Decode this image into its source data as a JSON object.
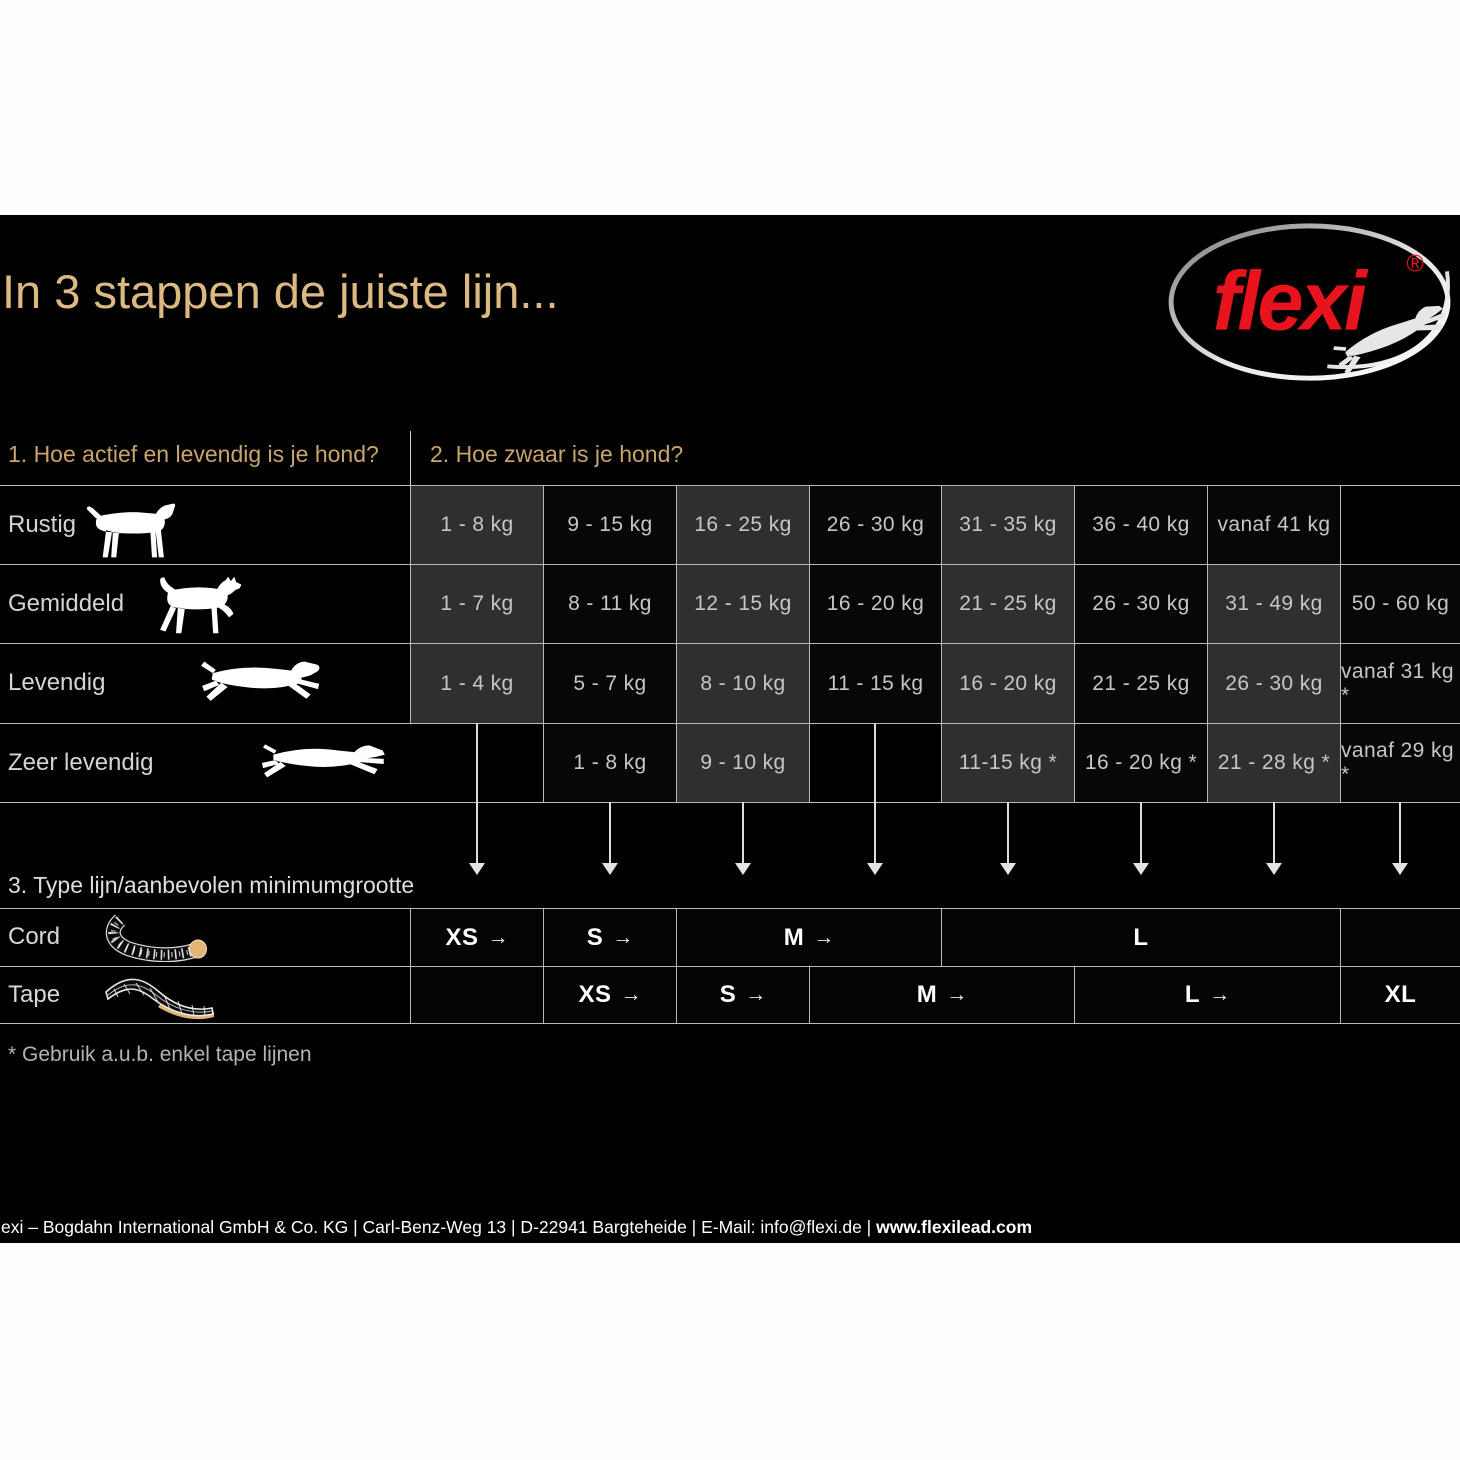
{
  "page": {
    "title": "In 3 stappen de juiste lijn..."
  },
  "logo": {
    "brand": "flexi",
    "registered": "®"
  },
  "steps": {
    "step1": "1. Hoe actief en levendig is je hond?",
    "step2": "2. Hoe zwaar is je hond?",
    "step3": "3. Type lijn/aanbevolen minimumgrootte"
  },
  "activity_rows": [
    {
      "label": "Rustig",
      "icon": "dog-standing-icon"
    },
    {
      "label": "Gemiddeld",
      "icon": "dog-trotting-icon"
    },
    {
      "label": "Levendig",
      "icon": "dog-running-icon"
    },
    {
      "label": "Zeer levendig",
      "icon": "dog-sprinting-icon"
    }
  ],
  "weight_grid": {
    "unit": "kg",
    "rows": [
      {
        "activity": "Rustig",
        "cells": [
          {
            "col": 0,
            "text": "1 - 8 kg",
            "shade": "gray"
          },
          {
            "col": 1,
            "text": "9 - 15 kg",
            "shade": "black"
          },
          {
            "col": 2,
            "text": "16 - 25 kg",
            "shade": "gray"
          },
          {
            "col": 3,
            "text": "26 - 30 kg",
            "shade": "black"
          },
          {
            "col": 4,
            "text": "31 - 35 kg",
            "shade": "gray"
          },
          {
            "col": 5,
            "text": "36 - 40 kg",
            "shade": "black"
          },
          {
            "col": 6,
            "text": "vanaf 41 kg",
            "shade": "black"
          }
        ]
      },
      {
        "activity": "Gemiddeld",
        "cells": [
          {
            "col": 0,
            "text": "1 - 7 kg",
            "shade": "gray"
          },
          {
            "col": 1,
            "text": "8 - 11 kg",
            "shade": "black"
          },
          {
            "col": 2,
            "text": "12 - 15 kg",
            "shade": "gray"
          },
          {
            "col": 3,
            "text": "16 - 20 kg",
            "shade": "black"
          },
          {
            "col": 4,
            "text": "21 - 25 kg",
            "shade": "gray"
          },
          {
            "col": 5,
            "text": "26 - 30 kg",
            "shade": "black"
          },
          {
            "col": 6,
            "text": "31 - 49 kg",
            "shade": "gray"
          },
          {
            "col": 7,
            "text": "50 - 60 kg",
            "shade": "black"
          }
        ]
      },
      {
        "activity": "Levendig",
        "cells": [
          {
            "col": 0,
            "text": "1 - 4 kg",
            "shade": "gray"
          },
          {
            "col": 1,
            "text": "5 - 7 kg",
            "shade": "black"
          },
          {
            "col": 2,
            "text": "8 - 10 kg",
            "shade": "gray"
          },
          {
            "col": 3,
            "text": "11 - 15 kg",
            "shade": "black"
          },
          {
            "col": 4,
            "text": "16 - 20 kg",
            "shade": "gray"
          },
          {
            "col": 5,
            "text": "21 - 25 kg",
            "shade": "black"
          },
          {
            "col": 6,
            "text": "26 - 30 kg",
            "shade": "gray"
          },
          {
            "col": 7,
            "text": "vanaf 31 kg *",
            "shade": "black"
          }
        ]
      },
      {
        "activity": "Zeer levendig",
        "cells": [
          {
            "col": 1,
            "text": "1 - 8 kg",
            "shade": "black"
          },
          {
            "col": 2,
            "text": "9 - 10 kg",
            "shade": "gray"
          },
          {
            "col": 4,
            "text": "11-15 kg *",
            "shade": "gray"
          },
          {
            "col": 5,
            "text": "16 - 20 kg *",
            "shade": "black"
          },
          {
            "col": 6,
            "text": "21 - 28 kg *",
            "shade": "gray"
          },
          {
            "col": 7,
            "text": "vanaf 29 kg *",
            "shade": "black"
          }
        ]
      }
    ]
  },
  "size_table": {
    "rows": [
      {
        "label": "Cord",
        "icon": "cord-leash-icon",
        "cells": [
          {
            "span": [
              0,
              1
            ],
            "text": "XS",
            "arrow": true
          },
          {
            "span": [
              1,
              2
            ],
            "text": "S",
            "arrow": true
          },
          {
            "span": [
              2,
              4
            ],
            "text": "M",
            "arrow": true
          },
          {
            "span": [
              4,
              7
            ],
            "text": "L",
            "arrow": false
          },
          {
            "span": [
              7,
              8
            ],
            "text": "",
            "arrow": false
          }
        ]
      },
      {
        "label": "Tape",
        "icon": "tape-leash-icon",
        "cells": [
          {
            "span": [
              0,
              1
            ],
            "text": "",
            "arrow": false
          },
          {
            "span": [
              1,
              2
            ],
            "text": "XS",
            "arrow": true
          },
          {
            "span": [
              2,
              3
            ],
            "text": "S",
            "arrow": true
          },
          {
            "span": [
              3,
              5
            ],
            "text": "M",
            "arrow": true
          },
          {
            "span": [
              5,
              7
            ],
            "text": "L",
            "arrow": true
          },
          {
            "span": [
              7,
              8
            ],
            "text": "XL",
            "arrow": false
          }
        ]
      }
    ]
  },
  "footnote": "* Gebruik a.u.b. enkel tape lijnen",
  "footer": {
    "info": "exi – Bogdahn International GmbH & Co. KG | Carl-Benz-Weg 13 | D-22941 Bargteheide | E-Mail: info@flexi.de | ",
    "website": "www.flexilead.com"
  },
  "colors": {
    "accent_gold": "#c9a56c",
    "title_gold": "#dcb980",
    "brand_red": "#e8131d",
    "cell_gray": "#2f2f2f",
    "cell_black": "#070707",
    "grid_line": "#b9b9b9",
    "leash_tan": "#e2b577"
  }
}
